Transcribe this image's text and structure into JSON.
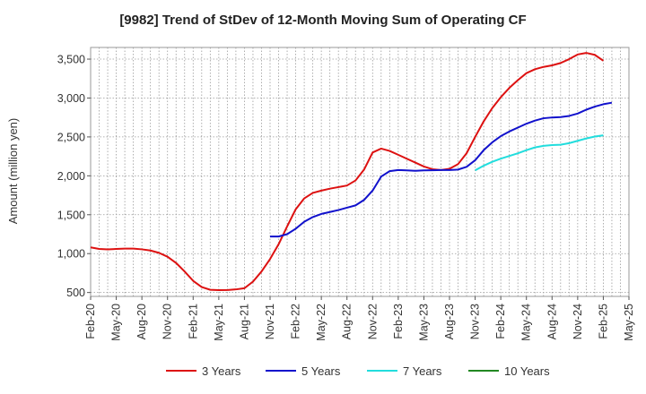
{
  "chart_data": {
    "type": "line",
    "title": "[9982]  Trend of StDev of 12-Month Moving Sum of Operating CF",
    "xlabel": "",
    "ylabel": "Amount (million yen)",
    "ylim": [
      450,
      3650
    ],
    "yticks": [
      500,
      1000,
      1500,
      2000,
      2500,
      3000,
      3500
    ],
    "ytick_labels": [
      "500",
      "1,000",
      "1,500",
      "2,000",
      "2,500",
      "3,000",
      "3,500"
    ],
    "xticks": [
      "Feb-20",
      "May-20",
      "Aug-20",
      "Nov-20",
      "Feb-21",
      "May-21",
      "Aug-21",
      "Nov-21",
      "Feb-22",
      "May-22",
      "Aug-22",
      "Nov-22",
      "Feb-23",
      "May-23",
      "Aug-23",
      "Nov-23",
      "Feb-24",
      "May-24",
      "Aug-24",
      "Nov-24",
      "Feb-25",
      "May-25"
    ],
    "x_start": "Feb-20",
    "grid": true,
    "legend_position": "bottom",
    "series": [
      {
        "name": "3 Years",
        "color": "#dd1111",
        "start_index": 0,
        "values": [
          1080,
          1060,
          1055,
          1060,
          1065,
          1065,
          1055,
          1040,
          1010,
          960,
          880,
          770,
          650,
          570,
          535,
          530,
          532,
          540,
          555,
          640,
          770,
          930,
          1120,
          1350,
          1570,
          1710,
          1780,
          1810,
          1835,
          1855,
          1875,
          1940,
          2080,
          2300,
          2350,
          2320,
          2270,
          2220,
          2170,
          2120,
          2085,
          2075,
          2090,
          2150,
          2290,
          2500,
          2700,
          2870,
          3010,
          3130,
          3230,
          3320,
          3370,
          3400,
          3420,
          3450,
          3500,
          3560,
          3580,
          3555,
          3480
        ]
      },
      {
        "name": "5 Years",
        "color": "#1111cc",
        "start_index": 21,
        "values": [
          1220,
          1220,
          1250,
          1320,
          1410,
          1470,
          1510,
          1535,
          1560,
          1590,
          1620,
          1690,
          1810,
          1990,
          2060,
          2075,
          2070,
          2065,
          2070,
          2072,
          2075,
          2075,
          2080,
          2115,
          2200,
          2330,
          2430,
          2510,
          2570,
          2620,
          2670,
          2710,
          2740,
          2750,
          2755,
          2770,
          2800,
          2850,
          2890,
          2920,
          2940
        ]
      },
      {
        "name": "7 Years",
        "color": "#22dddd",
        "start_index": 45,
        "values": [
          2070,
          2130,
          2180,
          2220,
          2255,
          2290,
          2330,
          2365,
          2385,
          2395,
          2400,
          2420,
          2450,
          2480,
          2505,
          2520
        ]
      },
      {
        "name": "10 Years",
        "color": "#228822",
        "start_index": 0,
        "values": []
      }
    ]
  }
}
